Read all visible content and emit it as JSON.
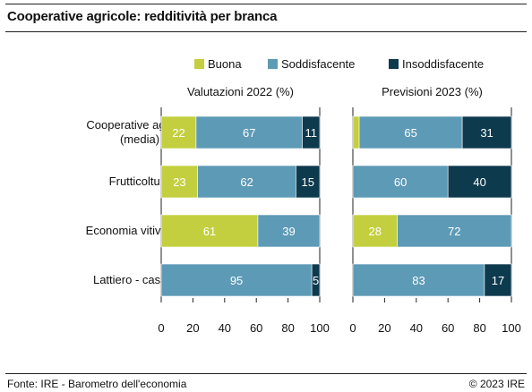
{
  "title": "Cooperative agricole: redditività per branca",
  "source": "Fonte: IRE - Barometro dell'economia",
  "copyright": "© 2023 IRE",
  "colors": {
    "buona": "#c3cf3e",
    "soddisfacente": "#5d9ab6",
    "insoddisfacente": "#0e3a4e",
    "label_light": "#ffffff",
    "label_dark": "#ffffff"
  },
  "chart_data": {
    "type": "bar",
    "orientation": "horizontal",
    "stacked": true,
    "legend": {
      "placement": "top-right",
      "items": [
        {
          "key": "buona",
          "label": "Buona"
        },
        {
          "key": "soddisfacente",
          "label": "Soddisfacente"
        },
        {
          "key": "insoddisfacente",
          "label": "Insoddisfacente"
        }
      ]
    },
    "categories": [
      [
        "Cooperative agricole",
        "(media)"
      ],
      [
        "Frutticoltura"
      ],
      [
        "Economia vitivinicola"
      ],
      [
        "Lattiero - caseario"
      ]
    ],
    "panels": [
      {
        "title": "Valutazioni 2022 (%)",
        "xlim": [
          0,
          100
        ],
        "xticks": [
          0,
          20,
          40,
          60,
          80,
          100
        ],
        "series": [
          {
            "key": "buona",
            "values": [
              22,
              23,
              61,
              0
            ],
            "labels": [
              "22",
              "23",
              "61",
              ""
            ]
          },
          {
            "key": "soddisfacente",
            "values": [
              67,
              62,
              39,
              95
            ],
            "labels": [
              "67",
              "62",
              "39",
              "95"
            ]
          },
          {
            "key": "insoddisfacente",
            "values": [
              11,
              15,
              0,
              5
            ],
            "labels": [
              "11",
              "15",
              "",
              "5"
            ]
          }
        ]
      },
      {
        "title": "Previsioni 2023 (%)",
        "xlim": [
          0,
          100
        ],
        "xticks": [
          0,
          20,
          40,
          60,
          80,
          100
        ],
        "series": [
          {
            "key": "buona",
            "values": [
              4,
              0,
              28,
              0
            ],
            "labels": [
              "",
              "",
              "28",
              ""
            ]
          },
          {
            "key": "soddisfacente",
            "values": [
              65,
              60,
              72,
              83
            ],
            "labels": [
              "65",
              "60",
              "72",
              "83"
            ]
          },
          {
            "key": "insoddisfacente",
            "values": [
              31,
              40,
              0,
              17
            ],
            "labels": [
              "31",
              "40",
              "",
              "17"
            ]
          }
        ]
      }
    ]
  }
}
